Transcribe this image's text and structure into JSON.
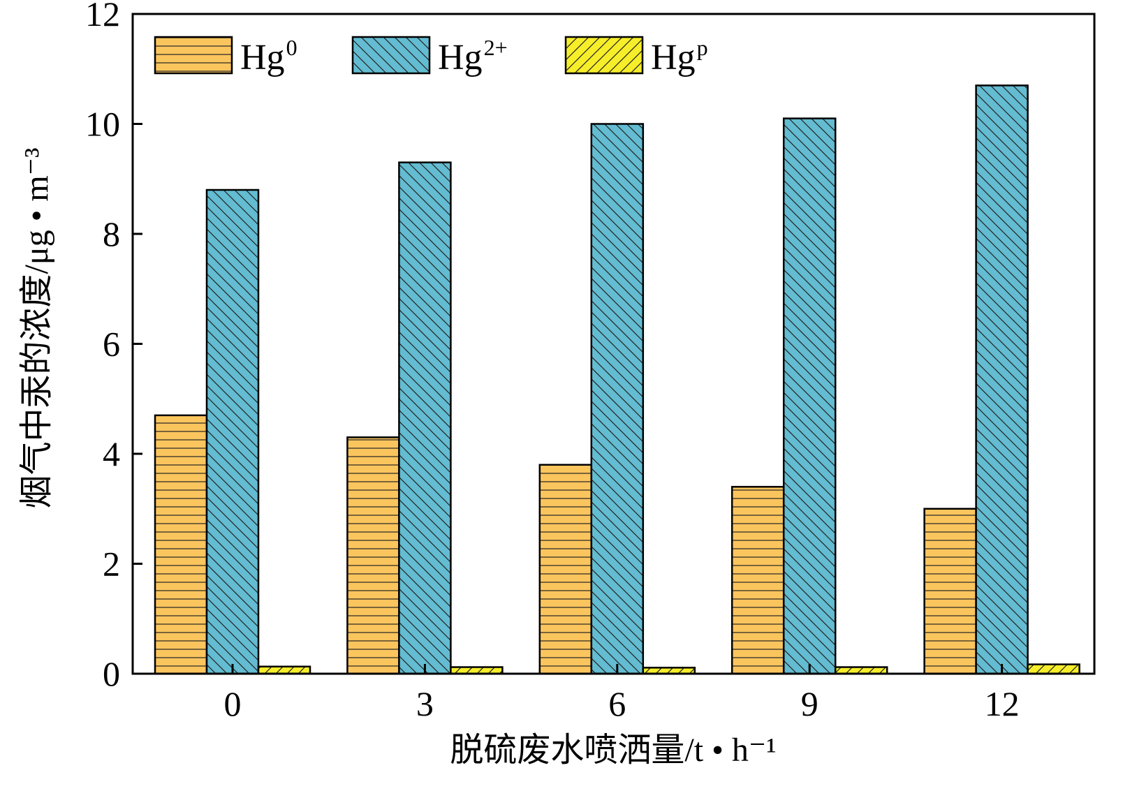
{
  "chart_data": {
    "type": "bar",
    "categories": [
      "0",
      "3",
      "6",
      "9",
      "12"
    ],
    "series": [
      {
        "name": "Hg",
        "superscript": "0",
        "values": [
          4.7,
          4.3,
          3.8,
          3.4,
          3.0
        ],
        "color": "#FBC55E",
        "hatch": "horizontal"
      },
      {
        "name": "Hg",
        "superscript": "2+",
        "values": [
          8.8,
          9.3,
          10.0,
          10.1,
          10.7
        ],
        "color": "#63BCD1",
        "hatch": "backslash"
      },
      {
        "name": "Hg",
        "superscript": "p",
        "values": [
          0.13,
          0.12,
          0.11,
          0.12,
          0.17
        ],
        "color": "#F7EE2A",
        "hatch": "slash"
      }
    ],
    "yticks": [
      "0",
      "2",
      "4",
      "6",
      "8",
      "10",
      "12"
    ],
    "ylim": [
      0,
      12
    ],
    "xlabel": "脱硫废水喷洒量/t • h⁻¹",
    "ylabel": "烟气中汞的浓度/μg • m⁻³",
    "legend_position": "top-left",
    "grid": false
  }
}
